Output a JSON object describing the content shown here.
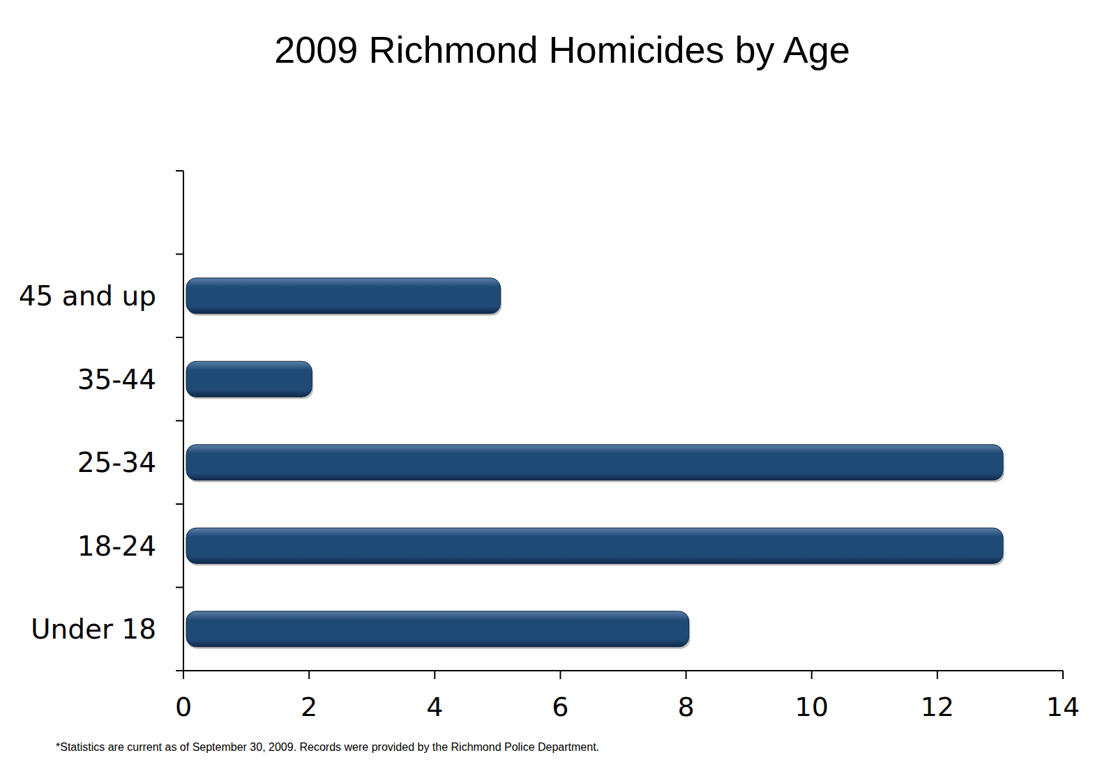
{
  "chart_data": {
    "type": "bar",
    "orientation": "horizontal",
    "title": "2009 Richmond Homicides by Age",
    "categories": [
      "Under 18",
      "18-24",
      "25-34",
      "35-44",
      "45 and up"
    ],
    "values": [
      8,
      13,
      13,
      2,
      5
    ],
    "color": "#1f4a75",
    "xlim": [
      0,
      14
    ],
    "xticks": [
      0,
      2,
      4,
      6,
      8,
      10,
      12,
      14
    ],
    "grid": false,
    "annotations": [
      "*Statistics are current as of September 30, 2009. Records were provided by the Richmond Police Department."
    ]
  }
}
